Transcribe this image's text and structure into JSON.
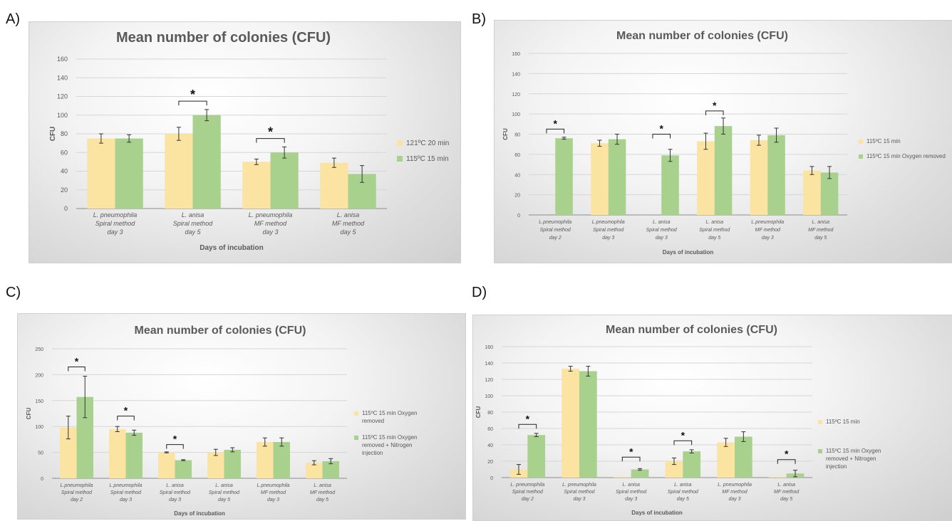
{
  "panels": [
    {
      "label": "A)"
    },
    {
      "label": "B)"
    },
    {
      "label": "C)"
    },
    {
      "label": "D)"
    }
  ],
  "colors": {
    "series1": "#fbe3a2",
    "series2": "#a9d18e",
    "grid": "#d6d6d6",
    "axis": "#8c8c8c"
  },
  "chart_data": [
    {
      "type": "bar",
      "title": "Mean number of colonies (CFU)",
      "xlabel": "Days of incubation",
      "ylabel": "CFU",
      "ylim": [
        0,
        160
      ],
      "yticks": [
        0,
        20,
        40,
        60,
        80,
        100,
        120,
        140,
        160
      ],
      "grid": true,
      "legend_position": "right",
      "categories": [
        [
          "L. pneumophila",
          "Spiral method",
          "day 3"
        ],
        [
          "L. anisa",
          "Spiral method",
          "day 5"
        ],
        [
          "L. pneumophila",
          "MF method",
          "day 3"
        ],
        [
          "L. anisa",
          "MF method",
          "day 5"
        ]
      ],
      "series": [
        {
          "name": "121ºC 20 min",
          "values": [
            75,
            80,
            50,
            49
          ],
          "errors": [
            5,
            7,
            3,
            5
          ]
        },
        {
          "name": "115ºC 15 min",
          "values": [
            75,
            100,
            60,
            37
          ],
          "errors": [
            4,
            6,
            6,
            9
          ]
        }
      ],
      "significance": [
        {
          "category": 1,
          "value": 115,
          "label": "*"
        },
        {
          "category": 2,
          "value": 75,
          "label": "*"
        }
      ]
    },
    {
      "type": "bar",
      "title": "Mean number of colonies (CFU)",
      "xlabel": "Days of incubation",
      "ylabel": "CFU",
      "ylim": [
        0,
        160
      ],
      "yticks": [
        0,
        20,
        40,
        60,
        80,
        100,
        120,
        140,
        160
      ],
      "grid": true,
      "legend_position": "right",
      "categories": [
        [
          "L.pneumophila",
          "Spiral method",
          "day 2"
        ],
        [
          "L.pneumophila",
          "Spiral method",
          "day 3"
        ],
        [
          "L. anisa",
          "Spiral method",
          "day 3"
        ],
        [
          "L. anisa",
          "Spiral method",
          "day 5"
        ],
        [
          "L.pneumophila",
          "MF method",
          "day 3"
        ],
        [
          "L. anisa",
          "MF method",
          "day 5"
        ]
      ],
      "series": [
        {
          "name": "115ºC 15 min",
          "values": [
            0,
            71,
            0,
            73,
            74,
            44
          ],
          "errors": [
            0,
            3,
            0,
            8,
            5,
            4
          ]
        },
        {
          "name": "115ºC 15 min Oxygen removed",
          "values": [
            76,
            75,
            59,
            88,
            79,
            42
          ],
          "errors": [
            1,
            5,
            6,
            8,
            7,
            6
          ]
        }
      ],
      "significance": [
        {
          "category": 0,
          "value": 85,
          "label": "*"
        },
        {
          "category": 2,
          "value": 80,
          "label": "*"
        },
        {
          "category": 3,
          "value": 103,
          "label": "*"
        }
      ]
    },
    {
      "type": "bar",
      "title": "Mean number of colonies (CFU)",
      "xlabel": "Days of incubation",
      "ylabel": "CFU",
      "ylim": [
        0,
        250
      ],
      "yticks": [
        0,
        50,
        100,
        150,
        200,
        250
      ],
      "grid": true,
      "legend_position": "right",
      "categories": [
        [
          "L.pneumophila",
          "Spiral method",
          "day 2"
        ],
        [
          "L.pneumophila",
          "Spiral method",
          "day 3"
        ],
        [
          "L. anisa",
          "Spiral method",
          "day 3"
        ],
        [
          "L. anisa",
          "Spiral method",
          "day 5"
        ],
        [
          "L.pneumophila",
          "MF method",
          "day 3"
        ],
        [
          "L. anisa",
          "MF method",
          "day 5"
        ]
      ],
      "series": [
        {
          "name": "115ºC 15 min Oxygen removed",
          "values": [
            98,
            95,
            50,
            50,
            70,
            30
          ],
          "errors": [
            22,
            5,
            1,
            6,
            8,
            4
          ]
        },
        {
          "name": "115ºC 15 min Oxygen removed + Nitrogen injection",
          "values": [
            157,
            88,
            35,
            55,
            70,
            33
          ],
          "errors": [
            40,
            5,
            1,
            4,
            8,
            5
          ]
        }
      ],
      "significance": [
        {
          "category": 0,
          "value": 215,
          "label": "*"
        },
        {
          "category": 1,
          "value": 120,
          "label": "*"
        },
        {
          "category": 2,
          "value": 65,
          "label": "*"
        }
      ]
    },
    {
      "type": "bar",
      "title": "Mean number of colonies (CFU)",
      "xlabel": "Days of incubation",
      "ylabel": "CFU",
      "ylim": [
        0,
        160
      ],
      "yticks": [
        0,
        20,
        40,
        60,
        80,
        100,
        120,
        140,
        160
      ],
      "grid": true,
      "legend_position": "right",
      "categories": [
        [
          "L. pneumophila",
          "Spiral method",
          "day 2"
        ],
        [
          "L. pneumophila",
          "Spiral method",
          "day 3"
        ],
        [
          "L. anisa",
          "Spiral method",
          "day 3"
        ],
        [
          "L. anisa",
          "Spiral method",
          "day 5"
        ],
        [
          "L. pneumophila",
          "MF method",
          "day 3"
        ],
        [
          "L. anisa",
          "MF method",
          "day 5"
        ]
      ],
      "series": [
        {
          "name": "115ºC 15 min",
          "values": [
            10,
            133,
            1,
            20,
            43,
            1
          ],
          "errors": [
            6,
            3,
            0,
            4,
            5,
            0
          ]
        },
        {
          "name": "115ºC 15 min Oxygen removed + Nitrogen injection",
          "values": [
            52,
            130,
            10,
            32,
            50,
            5
          ],
          "errors": [
            2,
            6,
            1,
            2,
            6,
            4
          ]
        }
      ],
      "significance": [
        {
          "category": 0,
          "value": 65,
          "label": "*"
        },
        {
          "category": 2,
          "value": 25,
          "label": "*"
        },
        {
          "category": 3,
          "value": 45,
          "label": "*"
        },
        {
          "category": 5,
          "value": 22,
          "label": "*"
        }
      ]
    }
  ]
}
